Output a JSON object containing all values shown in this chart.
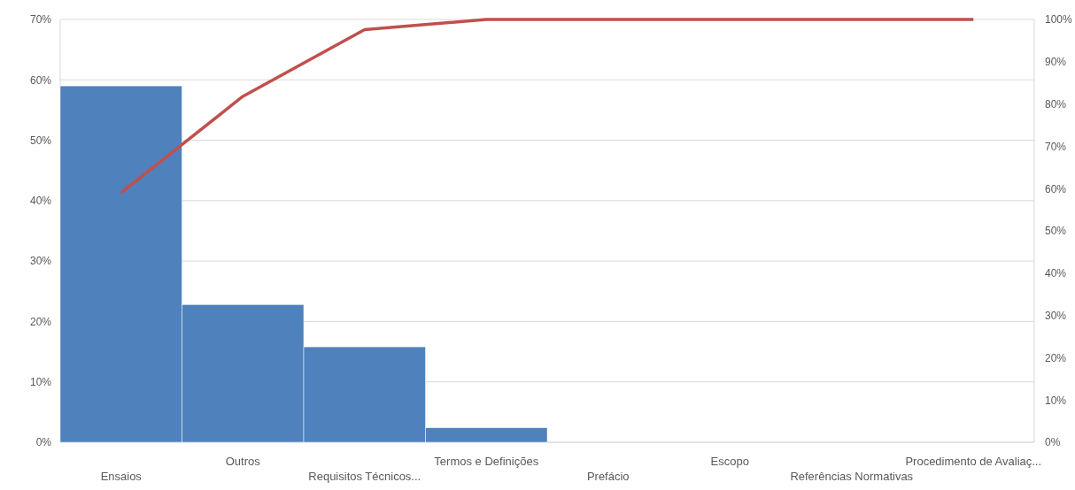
{
  "chart_data": {
    "type": "bar",
    "categories": [
      "Ensaios",
      "Outros",
      "Requisitos Técnicos...",
      "Termos e Definições",
      "Prefácio",
      "Escopo",
      "Referências Normativas",
      "Procedimento de Avaliaç..."
    ],
    "series": [
      {
        "color": "#4f81bd",
        "values": [
          59,
          22.8,
          15.8,
          2.4,
          0,
          0,
          0,
          0
        ]
      },
      {
        "type": "line",
        "axis": "y2",
        "color": "#c0504d",
        "values": [
          59,
          81.8,
          97.6,
          100,
          100,
          100,
          100,
          100
        ]
      }
    ],
    "ylim": [
      0,
      70
    ],
    "yticks": [
      {
        "value": 0,
        "label": "0%"
      },
      {
        "value": 10,
        "label": "10%"
      },
      {
        "value": 20,
        "label": "20%"
      },
      {
        "value": 30,
        "label": "30%"
      },
      {
        "value": 40,
        "label": "40%"
      },
      {
        "value": 50,
        "label": "50%"
      },
      {
        "value": 60,
        "label": "60%"
      },
      {
        "value": 70,
        "label": "70%"
      }
    ],
    "y2lim": [
      0,
      100
    ],
    "y2ticks": [
      {
        "value": 0,
        "label": "0%"
      },
      {
        "value": 10,
        "label": "10%"
      },
      {
        "value": 20,
        "label": "20%"
      },
      {
        "value": 30,
        "label": "30%"
      },
      {
        "value": 40,
        "label": "40%"
      },
      {
        "value": 50,
        "label": "50%"
      },
      {
        "value": 60,
        "label": "60%"
      },
      {
        "value": 70,
        "label": "70%"
      },
      {
        "value": 80,
        "label": "80%"
      },
      {
        "value": 90,
        "label": "90%"
      },
      {
        "value": 100,
        "label": "100%"
      }
    ],
    "grid": "y",
    "marker": "none",
    "line_style": "solid"
  }
}
